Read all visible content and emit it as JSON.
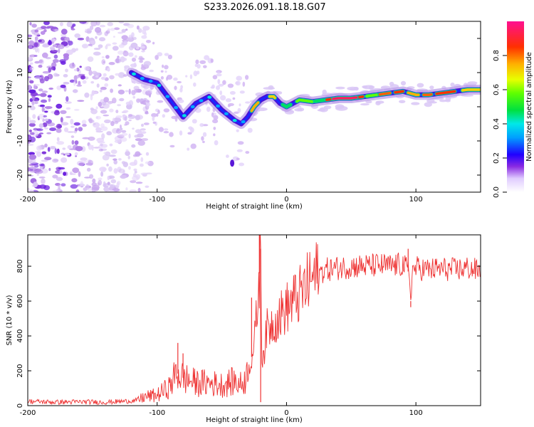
{
  "title": "S233.2026.091.18.18.G07",
  "chart_data": [
    {
      "type": "heatmap",
      "xlabel": "Height of straight line (km)",
      "ylabel": "Frequency (Hz)",
      "xlim": [
        -200,
        150
      ],
      "ylim": [
        -25,
        25
      ],
      "xticks": [
        -200,
        -100,
        0,
        100
      ],
      "xtick_labels": [
        "-200",
        "-100",
        "0",
        "100"
      ],
      "yticks": [
        -20,
        -10,
        0,
        10,
        20
      ],
      "ytick_labels": [
        "-20",
        "-10",
        "0",
        "10",
        "20"
      ],
      "ridge": {
        "x": [
          -120,
          -110,
          -100,
          -90,
          -80,
          -70,
          -60,
          -50,
          -40,
          -35,
          -30,
          -25,
          -20,
          -15,
          -10,
          -5,
          0,
          5,
          10,
          20,
          30,
          40,
          50,
          60,
          70,
          80,
          90,
          100,
          110,
          120,
          130,
          140,
          150
        ],
        "y": [
          10,
          8,
          7,
          2,
          -3,
          1,
          3,
          -1,
          -4,
          -5,
          -3,
          0,
          2,
          3,
          3,
          1,
          0,
          1,
          2,
          1.5,
          2,
          2.5,
          2.5,
          3,
          3.5,
          4,
          4.5,
          3.5,
          3.5,
          4,
          4.5,
          5,
          5
        ]
      },
      "colorbar": {
        "label": "Normalized spectral amplitude",
        "range": [
          0,
          1
        ],
        "ticks": [
          0.0,
          0.2,
          0.4,
          0.6,
          0.8
        ],
        "tick_labels": [
          "0.0",
          "0.2",
          "0.4",
          "0.6",
          "0.8"
        ]
      }
    },
    {
      "type": "line",
      "xlabel": "Height of straight line (km)",
      "ylabel": "SNR (10 * v/v)",
      "xlim": [
        -200,
        150
      ],
      "ylim": [
        0,
        980
      ],
      "xticks": [
        -200,
        -100,
        0,
        100
      ],
      "xtick_labels": [
        "-200",
        "-100",
        "0",
        "100"
      ],
      "yticks": [
        0,
        200,
        400,
        600,
        800
      ],
      "ytick_labels": [
        "0",
        "200",
        "400",
        "600",
        "800"
      ],
      "color": "#ee3333",
      "series": [
        {
          "name": "SNR",
          "x": [
            -200,
            -180,
            -160,
            -140,
            -125,
            -115,
            -110,
            -100,
            -90,
            -85,
            -80,
            -70,
            -60,
            -50,
            -45,
            -40,
            -35,
            -30,
            -27,
            -25,
            -22,
            -20,
            -19,
            -17,
            -15,
            -10,
            -5,
            0,
            5,
            10,
            15,
            20,
            25,
            30,
            40,
            50,
            60,
            70,
            80,
            90,
            95,
            96,
            97,
            100,
            110,
            120,
            130,
            140,
            150
          ],
          "y": [
            25,
            20,
            22,
            20,
            25,
            30,
            50,
            60,
            110,
            190,
            160,
            130,
            130,
            120,
            130,
            140,
            120,
            180,
            280,
            340,
            620,
            900,
            280,
            330,
            440,
            480,
            520,
            560,
            600,
            630,
            680,
            730,
            760,
            780,
            790,
            800,
            800,
            805,
            800,
            810,
            760,
            600,
            770,
            790,
            780,
            785,
            780,
            790,
            770
          ]
        }
      ],
      "spikes": [
        {
          "x": -84,
          "y": 360
        },
        {
          "x": -80,
          "y": 300
        },
        {
          "x": -27,
          "y": 620
        },
        {
          "x": -21,
          "y": 980
        },
        {
          "x": -20,
          "y": 20
        },
        {
          "x": 94,
          "y": 900
        },
        {
          "x": 96,
          "y": 565
        }
      ]
    }
  ]
}
